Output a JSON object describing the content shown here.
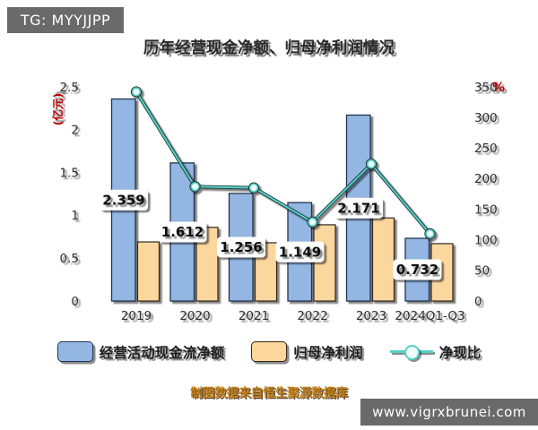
{
  "badges": {
    "tg": "TG: MYYJJPP",
    "site": "www.vigrxbrunei.com"
  },
  "title": "历年经营现金净额、归母净利润情况",
  "footnote": "制图数据来自恒生聚源数据库",
  "colors": {
    "blue_fill": "#93b6e3",
    "blue_edge": "#24344d",
    "orange_fill": "#fbd79e",
    "orange_edge": "#33281a",
    "line": "#57d0c8",
    "line_dark": "#1f3b3b",
    "marker_fill": "#f0fffd",
    "grid": "#8f8f8f",
    "axis": "#141414",
    "tick_text": "#2e2e2e",
    "axis_unit_red": "#bb0000",
    "label_text": "#111111",
    "label_bg": "#ffffff",
    "badge_bg": "#6a6a6a",
    "footnote_text": "#c17c10"
  },
  "chart_data": {
    "type": "bar+line",
    "title": "历年经营现金净额、归母净利润情况",
    "categories": [
      "2019",
      "2020",
      "2021",
      "2022",
      "2023",
      "2024Q1-Q3"
    ],
    "bar_series": [
      {
        "name": "经营活动现金流净额",
        "axis": "left",
        "values": [
          2.359,
          1.612,
          1.256,
          1.149,
          2.171,
          0.732
        ],
        "labels": [
          "2.359",
          "1.612",
          "1.256",
          "1.149",
          "2.171",
          "0.732"
        ]
      },
      {
        "name": "归母净利润",
        "axis": "left",
        "values": [
          0.69,
          0.86,
          0.68,
          0.89,
          0.97,
          0.67
        ]
      }
    ],
    "line_series": {
      "name": "净现比",
      "axis": "right",
      "values": [
        342,
        187,
        185,
        129,
        224,
        110
      ]
    },
    "left_axis": {
      "label": "(亿元)",
      "ticks": [
        "0",
        "0.5",
        "1",
        "1.5",
        "2",
        "2.5"
      ],
      "range": [
        0,
        2.5
      ]
    },
    "right_axis": {
      "label": "%",
      "ticks": [
        "0",
        "50",
        "100",
        "150",
        "200",
        "250",
        "300",
        "350"
      ],
      "range": [
        0,
        350
      ]
    },
    "grid": true,
    "legend_position": "bottom"
  }
}
